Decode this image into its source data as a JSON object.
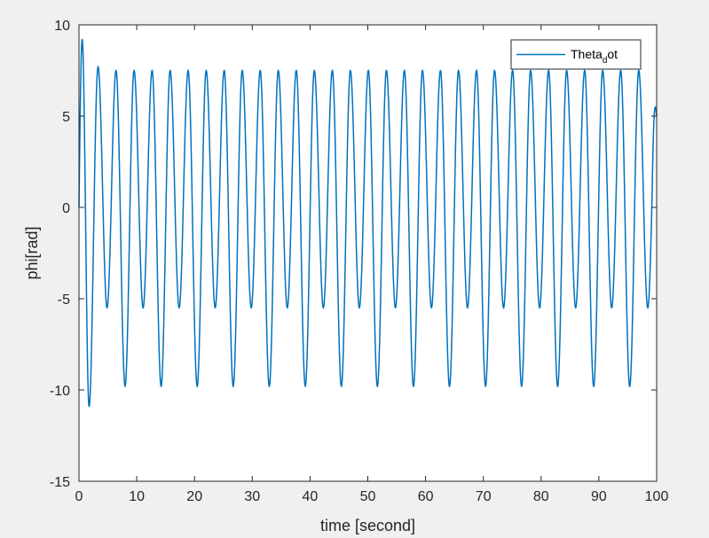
{
  "chart_data": {
    "type": "line",
    "xlabel": "time [second]",
    "ylabel": "phi[rad]",
    "xlim": [
      0,
      100
    ],
    "ylim": [
      -15,
      10
    ],
    "xticks": [
      "0",
      "10",
      "20",
      "30",
      "40",
      "50",
      "60",
      "70",
      "80",
      "90",
      "100"
    ],
    "yticks": [
      "10",
      "5",
      "0",
      "-5",
      "-10",
      "-15"
    ],
    "grid": false,
    "legend_position": "top-right",
    "colors": {
      "series": "#0072BD",
      "axes": "#262626",
      "background": "#ffffff",
      "figure": "#f0f0f0"
    },
    "series": [
      {
        "name": "Thetadot",
        "legend_main": "Theta",
        "legend_sub": "d",
        "legend_tail": "ot",
        "curve_model": {
          "period": 3.12,
          "first_peak_t": 0.55,
          "first_peak_value": 9.2,
          "first_trough_t": 1.75,
          "first_trough_value": -10.9,
          "second_peak_t": 3.3,
          "second_peak_value": 7.7,
          "steady_peak_value": 7.5,
          "steady_trough_a": -5.5,
          "steady_trough_b": -9.8,
          "steady_peak_phase_t": 4.57,
          "end_value": 5.0
        }
      }
    ]
  }
}
